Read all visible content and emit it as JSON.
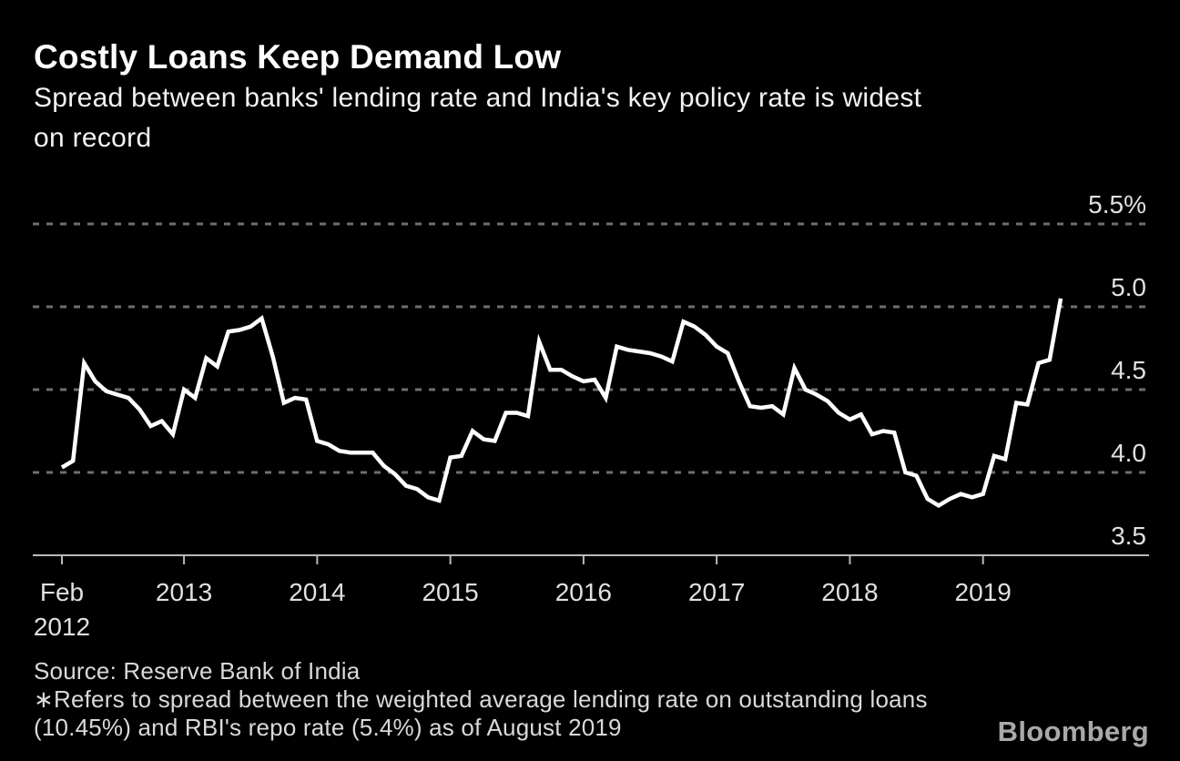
{
  "header": {
    "title": "Costly Loans Keep Demand Low",
    "subtitle_lines": [
      "Spread between banks' lending rate and India's key policy rate is widest",
      "on record"
    ]
  },
  "chart_data": {
    "type": "line",
    "title": "Costly Loans Keep Demand Low",
    "series_name": "Spread between banks' weighted average lending rate and RBI repo rate (percentage points)",
    "unit": "%",
    "frequency": "monthly",
    "x_start": "Feb 2012",
    "x_end": "Aug 2019",
    "values": [
      4.03,
      4.07,
      4.66,
      4.55,
      4.49,
      4.47,
      4.45,
      4.38,
      4.28,
      4.31,
      4.23,
      4.5,
      4.45,
      4.69,
      4.64,
      4.85,
      4.86,
      4.88,
      4.93,
      4.7,
      4.42,
      4.45,
      4.44,
      4.19,
      4.17,
      4.13,
      4.12,
      4.12,
      4.12,
      4.04,
      3.99,
      3.92,
      3.9,
      3.85,
      3.83,
      4.09,
      4.1,
      4.25,
      4.2,
      4.19,
      4.36,
      4.36,
      4.34,
      4.79,
      4.62,
      4.62,
      4.58,
      4.55,
      4.56,
      4.45,
      4.76,
      4.74,
      4.73,
      4.72,
      4.7,
      4.67,
      4.91,
      4.88,
      4.83,
      4.76,
      4.72,
      4.55,
      4.4,
      4.39,
      4.4,
      4.35,
      4.63,
      4.5,
      4.47,
      4.43,
      4.36,
      4.32,
      4.35,
      4.23,
      4.25,
      4.24,
      4.0,
      3.98,
      3.84,
      3.8,
      3.84,
      3.87,
      3.85,
      3.87,
      4.1,
      4.08,
      4.42,
      4.41,
      4.66,
      4.68,
      5.05
    ],
    "ylim": [
      3.5,
      5.5
    ],
    "y_ticks": [
      {
        "value": 5.5,
        "label": "5.5%"
      },
      {
        "value": 5.0,
        "label": "5.0"
      },
      {
        "value": 4.5,
        "label": "4.5"
      },
      {
        "value": 4.0,
        "label": "4.0"
      },
      {
        "value": 3.5,
        "label": "3.5"
      }
    ],
    "x_ticks": [
      {
        "month_index": 0,
        "label_lines": [
          "Feb",
          "2012"
        ]
      },
      {
        "month_index": 11,
        "label_lines": [
          "2013"
        ]
      },
      {
        "month_index": 23,
        "label_lines": [
          "2014"
        ]
      },
      {
        "month_index": 35,
        "label_lines": [
          "2015"
        ]
      },
      {
        "month_index": 47,
        "label_lines": [
          "2016"
        ]
      },
      {
        "month_index": 59,
        "label_lines": [
          "2017"
        ]
      },
      {
        "month_index": 71,
        "label_lines": [
          "2018"
        ]
      },
      {
        "month_index": 83,
        "label_lines": [
          "2019"
        ]
      }
    ],
    "grid": "horizontal dashed",
    "legend": "none"
  },
  "footer": {
    "source": "Source: Reserve Bank of India",
    "footnote_lines": [
      "∗Refers to spread between the weighted average lending rate on outstanding loans",
      "(10.45%) and RBI's repo rate (5.4%) as of August 2019"
    ],
    "brand": "Bloomberg"
  },
  "colors": {
    "background": "#000000",
    "line": "#ffffff",
    "grid": "#6e6e6e",
    "axis": "#b9b9b9",
    "tick_label": "#e0e0e0",
    "title_text": "#ffffff",
    "footnote_text": "#d9d9d9",
    "brand_text": "#a9a9a9"
  }
}
